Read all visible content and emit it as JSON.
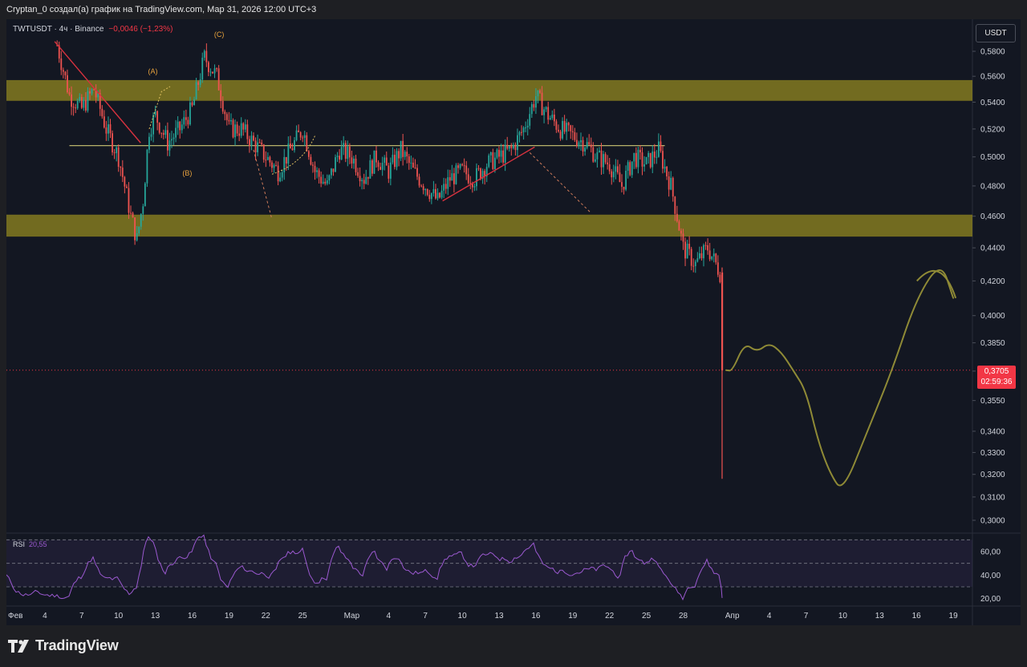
{
  "header": {
    "text": "Cryptan_0 создал(а) график на TradingView.com, Мар 31, 2026 12:00 UTC+3"
  },
  "symbol": {
    "name": "TWTUSDT · 4ч · Binance",
    "change": "−0,0046 (−1,23%)"
  },
  "currency_button": "USDT",
  "price_tag": {
    "value": "0,3705",
    "countdown": "02:59:36"
  },
  "rsi": {
    "label": "RSI",
    "value": "20,55"
  },
  "footer": {
    "logo": "TradingView"
  },
  "colors": {
    "up": "#26a69a",
    "down": "#ef5350",
    "zone": "#7d7420",
    "forecast": "#8f8a36",
    "rsi": "#9b59d0",
    "bg": "#131722"
  },
  "chart_data": {
    "type": "candlestick",
    "title": "",
    "x_tick_labels": [
      "Фев",
      "4",
      "7",
      "10",
      "13",
      "16",
      "19",
      "22",
      "25",
      "Мар",
      "4",
      "7",
      "10",
      "13",
      "16",
      "19",
      "22",
      "25",
      "28",
      "Апр",
      "4",
      "7",
      "10",
      "13",
      "16",
      "19"
    ],
    "y_tick_labels": [
      "0,5800",
      "0,5600",
      "0,5400",
      "0,5200",
      "0,5000",
      "0,4800",
      "0,4600",
      "0,4400",
      "0,4200",
      "0,4000",
      "0,3850",
      "0,3700",
      "0,3550",
      "0,3400",
      "0,3300",
      "0,3200",
      "0,3100",
      "0,3000"
    ],
    "y_scale": "log",
    "y_range": [
      0.295,
      0.6
    ],
    "wave_labels": [
      "(A)",
      "(B)",
      "(C)"
    ],
    "zones": [
      {
        "name": "resistance zone",
        "from": 0.541,
        "to": 0.557
      },
      {
        "name": "support zone",
        "from": 0.447,
        "to": 0.461
      }
    ],
    "horizontal_line": 0.508,
    "last_price": 0.3705,
    "price_path": [
      {
        "x": "Фев 5",
        "y": 0.585
      },
      {
        "x": "Фев 6",
        "y": 0.545
      },
      {
        "x": "Фев 7",
        "y": 0.535
      },
      {
        "x": "Фев 8",
        "y": 0.55
      },
      {
        "x": "Фев 9",
        "y": 0.52
      },
      {
        "x": "Фев 10",
        "y": 0.5
      },
      {
        "x": "Фев 11",
        "y": 0.46
      },
      {
        "x": "Фев 11.5",
        "y": 0.445
      },
      {
        "x": "Фев 12",
        "y": 0.47
      },
      {
        "x": "Фев 12.5",
        "y": 0.52
      },
      {
        "x": "Фев 13",
        "y": 0.53
      },
      {
        "x": "Фев 14",
        "y": 0.51
      },
      {
        "x": "Фев 15",
        "y": 0.52
      },
      {
        "x": "Фев 16",
        "y": 0.535
      },
      {
        "x": "Фев 17",
        "y": 0.575
      },
      {
        "x": "Фев 18",
        "y": 0.56
      },
      {
        "x": "Фев 19",
        "y": 0.52
      },
      {
        "x": "Фев 20",
        "y": 0.52
      },
      {
        "x": "Фев 21",
        "y": 0.51
      },
      {
        "x": "Фев 22",
        "y": 0.5
      },
      {
        "x": "Фев 23",
        "y": 0.49
      },
      {
        "x": "Фев 24",
        "y": 0.505
      },
      {
        "x": "Фев 25",
        "y": 0.52
      },
      {
        "x": "Фев 26",
        "y": 0.49
      },
      {
        "x": "Фев 27",
        "y": 0.48
      },
      {
        "x": "Фев 28",
        "y": 0.505
      },
      {
        "x": "Мар 1",
        "y": 0.5
      },
      {
        "x": "Мар 2",
        "y": 0.485
      },
      {
        "x": "Мар 3",
        "y": 0.5
      },
      {
        "x": "Мар 4",
        "y": 0.49
      },
      {
        "x": "Мар 5",
        "y": 0.505
      },
      {
        "x": "Мар 6",
        "y": 0.49
      },
      {
        "x": "Мар 7",
        "y": 0.48
      },
      {
        "x": "Мар 8",
        "y": 0.47
      },
      {
        "x": "Мар 9",
        "y": 0.485
      },
      {
        "x": "Мар 10",
        "y": 0.49
      },
      {
        "x": "Мар 11",
        "y": 0.485
      },
      {
        "x": "Мар 12",
        "y": 0.495
      },
      {
        "x": "Мар 13",
        "y": 0.5
      },
      {
        "x": "Мар 14",
        "y": 0.505
      },
      {
        "x": "Мар 15",
        "y": 0.52
      },
      {
        "x": "Мар 16",
        "y": 0.545
      },
      {
        "x": "Мар 17",
        "y": 0.53
      },
      {
        "x": "Мар 18",
        "y": 0.52
      },
      {
        "x": "Мар 19",
        "y": 0.515
      },
      {
        "x": "Мар 20",
        "y": 0.51
      },
      {
        "x": "Мар 21",
        "y": 0.5
      },
      {
        "x": "Мар 22",
        "y": 0.495
      },
      {
        "x": "Мар 23",
        "y": 0.48
      },
      {
        "x": "Мар 24",
        "y": 0.5
      },
      {
        "x": "Мар 25",
        "y": 0.495
      },
      {
        "x": "Мар 26",
        "y": 0.505
      },
      {
        "x": "Мар 27",
        "y": 0.48
      },
      {
        "x": "Мар 28",
        "y": 0.44
      },
      {
        "x": "Мар 29",
        "y": 0.43
      },
      {
        "x": "Мар 30",
        "y": 0.44
      },
      {
        "x": "Мар 31",
        "y": 0.425
      },
      {
        "x": "Мар 31.3",
        "y": 0.3705
      }
    ],
    "forecast_path": [
      {
        "x": "Апр 1",
        "y": 0.37
      },
      {
        "x": "Апр 2",
        "y": 0.385
      },
      {
        "x": "Апр 3",
        "y": 0.38
      },
      {
        "x": "Апр 4",
        "y": 0.385
      },
      {
        "x": "Апр 5",
        "y": 0.38
      },
      {
        "x": "Апр 6",
        "y": 0.37
      },
      {
        "x": "Апр 7",
        "y": 0.36
      },
      {
        "x": "Апр 8",
        "y": 0.335
      },
      {
        "x": "Апр 9",
        "y": 0.32
      },
      {
        "x": "Апр 10",
        "y": 0.312
      },
      {
        "x": "Апр 12",
        "y": 0.34
      },
      {
        "x": "Апр 14",
        "y": 0.37
      },
      {
        "x": "Апр 16",
        "y": 0.41
      },
      {
        "x": "Апр 18",
        "y": 0.432
      },
      {
        "x": "Апр 19",
        "y": 0.41
      }
    ],
    "rsi": {
      "label": "RSI",
      "value": 20.55,
      "y_tick_labels": [
        "60,00",
        "40,00",
        "20,00"
      ],
      "levels": [
        70,
        50,
        30
      ],
      "y_range": [
        15,
        75
      ]
    }
  }
}
